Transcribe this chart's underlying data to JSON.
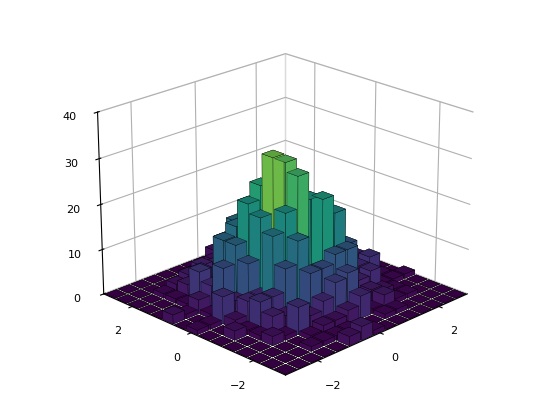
{
  "seed": 42,
  "n_samples": 1000,
  "n_bins": 15,
  "x_range": [
    -3,
    3
  ],
  "y_range": [
    -3,
    3
  ],
  "zlim": [
    0,
    40
  ],
  "zticks": [
    0,
    10,
    20,
    30,
    40
  ],
  "colormap": "viridis",
  "elev": 22,
  "azim": -135,
  "background_color": "#ffffff",
  "xlabel": "",
  "ylabel": "",
  "zlabel": "",
  "xticks": [
    -2,
    0,
    2
  ],
  "yticks": [
    -2,
    0,
    2
  ],
  "bar_gap": 0.88
}
